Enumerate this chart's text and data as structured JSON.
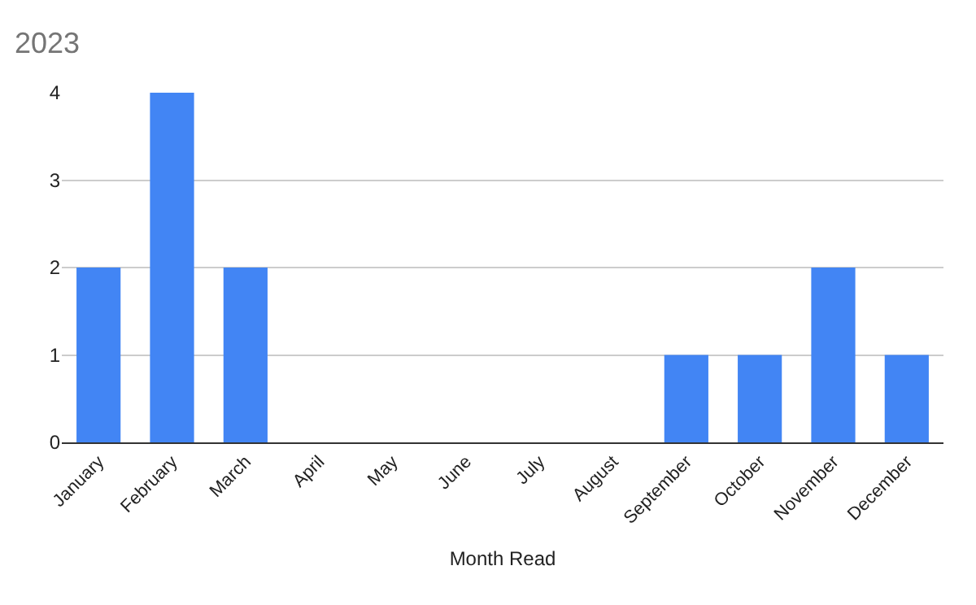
{
  "chart_data": {
    "type": "bar",
    "title": "2023",
    "xlabel": "Month Read",
    "categories": [
      "January",
      "February",
      "March",
      "April",
      "May",
      "June",
      "July",
      "August",
      "September",
      "October",
      "November",
      "December"
    ],
    "values": [
      2,
      4,
      2,
      0,
      0,
      0,
      0,
      0,
      1,
      1,
      2,
      1
    ],
    "color": "#4285f4",
    "ylim": [
      0,
      4
    ],
    "yticks": [
      0,
      1,
      2,
      3,
      4
    ],
    "grid": "y"
  }
}
